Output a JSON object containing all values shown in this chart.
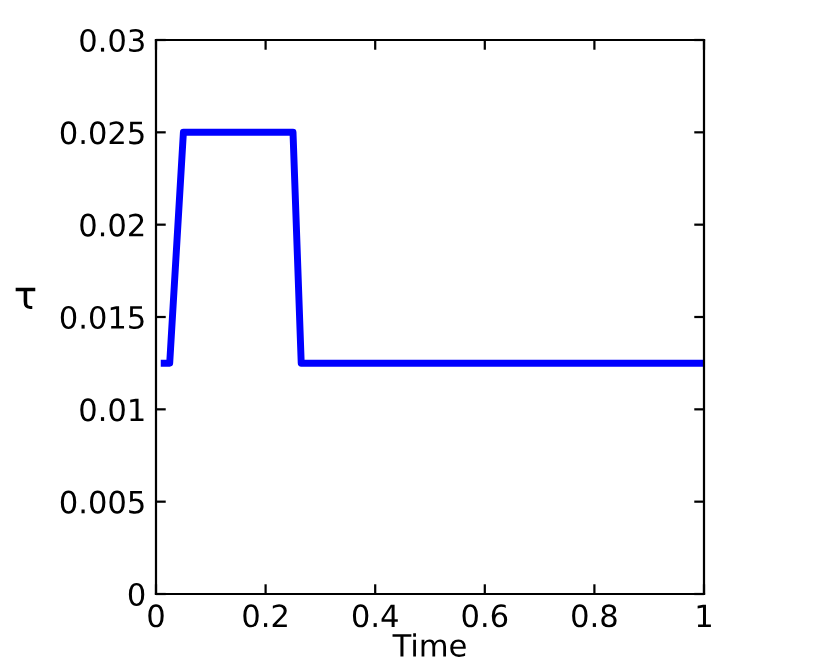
{
  "chart_data": {
    "type": "line",
    "xlabel": "Time",
    "ylabel": "τ",
    "x": [
      0.015,
      0.025,
      0.05,
      0.25,
      0.265,
      1.0
    ],
    "series": [
      {
        "color": "#0000ff",
        "values": [
          0.0125,
          0.0125,
          0.025,
          0.025,
          0.0125,
          0.0125
        ]
      }
    ],
    "xlim": [
      0,
      1
    ],
    "xticks": [
      0,
      0.2,
      0.4,
      0.6,
      0.8,
      1
    ],
    "ylim": [
      0,
      0.03
    ],
    "yticks": [
      0,
      0.005,
      0.01,
      0.015,
      0.02,
      0.025,
      0.03
    ],
    "grid": false,
    "legend": false,
    "marker": "none",
    "line_style": "solid"
  }
}
